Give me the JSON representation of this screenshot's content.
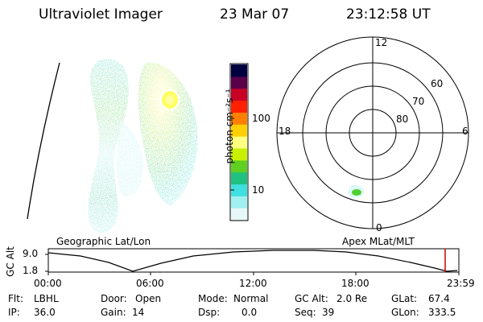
{
  "header": {
    "title": "Ultraviolet Imager",
    "date": "23 Mar 07",
    "time": "23:12:58 UT"
  },
  "colorbar": {
    "unit_label": "photon cm⁻²s⁻¹",
    "tick_labels": [
      "100",
      "10"
    ],
    "colors": [
      "#000040",
      "#5a0048",
      "#c80024",
      "#ff2000",
      "#ff8000",
      "#ffd000",
      "#ffff80",
      "#c8f000",
      "#60d020",
      "#20c080",
      "#40e0e0",
      "#a0f0f0",
      "#e8f8f8"
    ]
  },
  "polar_plot": {
    "mlt_labels": {
      "top": "12",
      "left": "18",
      "right": "6",
      "bottom": "0"
    },
    "lat_labels": [
      "60",
      "70",
      "80"
    ]
  },
  "altitude_plot": {
    "left_title": "Geographic Lat/Lon",
    "right_title": "Apex MLat/MLT",
    "ylabel": "GC Alt",
    "y_ticks": [
      "9.0",
      "1.8"
    ],
    "x_ticks": [
      "00:00",
      "06:00",
      "12:00",
      "18:00",
      "23:59"
    ],
    "marker_color": "#cc0000"
  },
  "info": {
    "flt_label": "Flt:",
    "flt_value": "LBHL",
    "ip_label": "IP:",
    "ip_value": "36.0",
    "door_label": "Door:",
    "door_value": "Open",
    "gain_label": "Gain:",
    "gain_value": "14",
    "mode_label": "Mode:",
    "mode_value": "Normal",
    "dsp_label": "Dsp:",
    "dsp_value": "0.0",
    "gcalt_label": "GC Alt:",
    "gcalt_value": "2.0 Re",
    "seq_label": "Seq:",
    "seq_value": "39",
    "glat_label": "GLat:",
    "glat_value": "67.4",
    "glon_label": "GLon:",
    "glon_value": "333.5"
  }
}
